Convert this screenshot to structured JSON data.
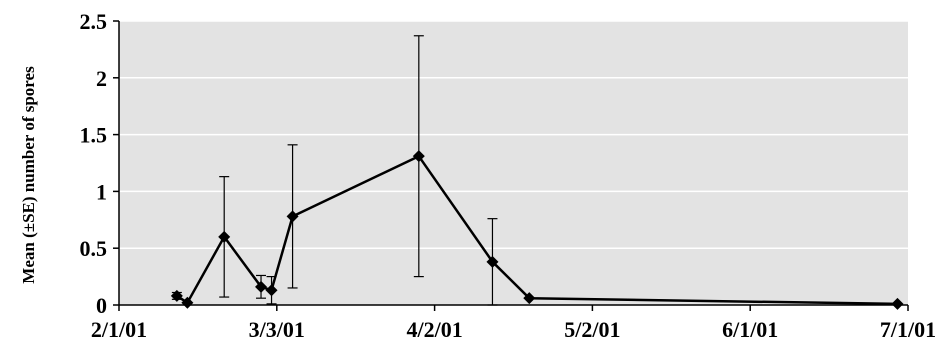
{
  "chart_data": {
    "type": "line",
    "title": "",
    "xlabel": "",
    "ylabel": "Mean (±SE) number of spores",
    "x_ticks": [
      "2/1/01",
      "3/3/01",
      "4/2/01",
      "5/2/01",
      "6/1/01",
      "7/1/01"
    ],
    "y_ticks": [
      "0",
      "0.5",
      "1",
      "1.5",
      "2",
      "2.5"
    ],
    "xlim": [
      "2/1/01",
      "7/1/01"
    ],
    "ylim": [
      0,
      2.5
    ],
    "grid": "horizontal",
    "legend": "none",
    "colors": {
      "plot_background": "#e3e3e3",
      "line": "#000000",
      "gridline": "#ffffff"
    },
    "series": [
      {
        "marker": "diamond",
        "points": [
          {
            "x": "2/12/01",
            "y": 0.08,
            "se": 0.03
          },
          {
            "x": "2/14/01",
            "y": 0.02,
            "se": 0.0
          },
          {
            "x": "2/21/01",
            "y": 0.6,
            "se": 0.53
          },
          {
            "x": "2/28/01",
            "y": 0.16,
            "se": 0.1
          },
          {
            "x": "3/2/01",
            "y": 0.13,
            "se": 0.12
          },
          {
            "x": "3/6/01",
            "y": 0.78,
            "se": 0.63
          },
          {
            "x": "3/30/01",
            "y": 1.31,
            "se": 1.06
          },
          {
            "x": "4/13/01",
            "y": 0.38,
            "se": 0.38
          },
          {
            "x": "4/20/01",
            "y": 0.06,
            "se": 0.0
          },
          {
            "x": "6/29/01",
            "y": 0.01,
            "se": 0.0
          }
        ]
      }
    ]
  }
}
